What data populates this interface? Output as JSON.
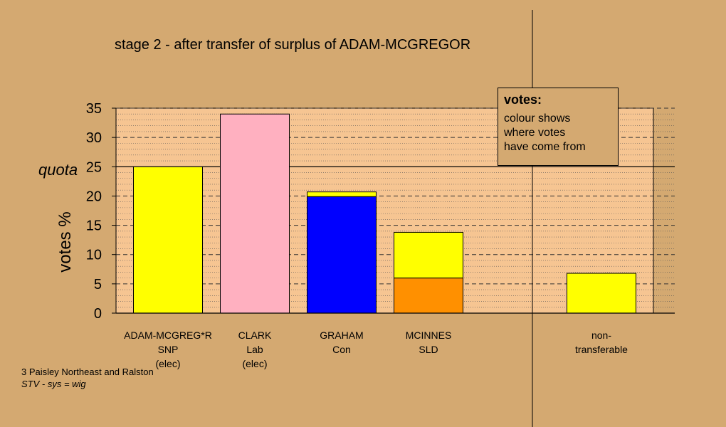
{
  "title": "stage 2 - after transfer of surplus of ADAM-MCGREGOR",
  "footnote": {
    "line1": "3 Paisley Northeast and Ralston",
    "line2": "STV - sys = wig"
  },
  "legend_box": {
    "heading": "votes:",
    "lines": [
      "colour shows",
      "where votes",
      "have come from"
    ]
  },
  "colors": {
    "background": "#D4A971",
    "plot_area": "#F6C592",
    "snp": "#FFFF00",
    "lab": "#FFB0C0",
    "con": "#0000FF",
    "sld": "#FF9000"
  },
  "chart_data": {
    "type": "bar",
    "stacked": true,
    "title": "stage 2 - after transfer of surplus of ADAM-MCGREGOR",
    "ylabel": "votes %",
    "ylim": [
      0,
      35
    ],
    "yticks": [
      0,
      5,
      10,
      15,
      20,
      25,
      30,
      35
    ],
    "quota": {
      "label": "quota",
      "value": 25
    },
    "grid": true,
    "categories": [
      {
        "lines": [
          "ADAM-MCGREG*R",
          "SNP",
          "(elec)"
        ]
      },
      {
        "lines": [
          "CLARK",
          "Lab",
          "(elec)"
        ]
      },
      {
        "lines": [
          "GRAHAM",
          "Con"
        ]
      },
      {
        "lines": [
          "MCINNES",
          "SLD"
        ]
      },
      {
        "lines": [
          "non-",
          "transferable"
        ]
      }
    ],
    "bars": [
      [
        {
          "source": "SNP",
          "value": 25.0,
          "color": "#FFFF00"
        }
      ],
      [
        {
          "source": "Lab",
          "value": 34.0,
          "color": "#FFB0C0"
        }
      ],
      [
        {
          "source": "Con",
          "value": 19.9,
          "color": "#0000FF"
        },
        {
          "source": "SNP",
          "value": 0.8,
          "color": "#FFFF00"
        }
      ],
      [
        {
          "source": "SLD",
          "value": 6.0,
          "color": "#FF9000"
        },
        {
          "source": "SNP",
          "value": 7.8,
          "color": "#FFFF00"
        }
      ],
      [
        {
          "source": "SNP",
          "value": 6.8,
          "color": "#FFFF00"
        }
      ]
    ]
  }
}
